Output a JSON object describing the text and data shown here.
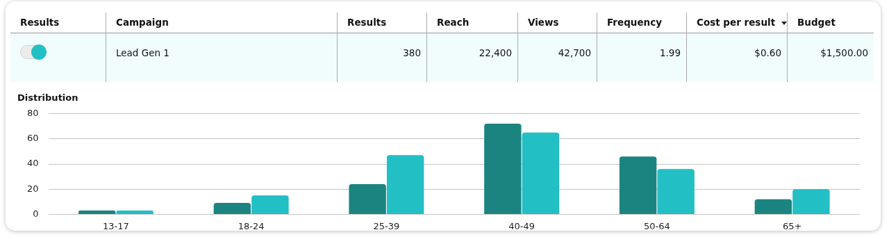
{
  "chart_data": [
    {
      "type": "other",
      "categories": [
        "Results",
        "Campaign",
        "Results",
        "Reach",
        "Views",
        "Frequency",
        "Cost per result",
        "Budget"
      ],
      "value_labels": [
        null,
        "Lead Gen 1",
        "380",
        "22,400",
        "42,700",
        "1.99",
        "$0.60",
        "$1,500.00"
      ]
    },
    {
      "type": "bar",
      "title": "Distribution",
      "categories": [
        "13-17",
        "18-24",
        "25-39",
        "40-49",
        "50-64",
        "65+"
      ],
      "series": [
        {
          "color": "#1c8480",
          "values": [
            3,
            9,
            24,
            72,
            46,
            12
          ]
        },
        {
          "color": "#22bfc4",
          "values": [
            3,
            15,
            47,
            65,
            36,
            20
          ]
        }
      ],
      "ylim": [
        0,
        80
      ],
      "yticks": [
        0,
        20,
        40,
        60,
        80
      ],
      "grid": "y",
      "legend": false
    }
  ]
}
